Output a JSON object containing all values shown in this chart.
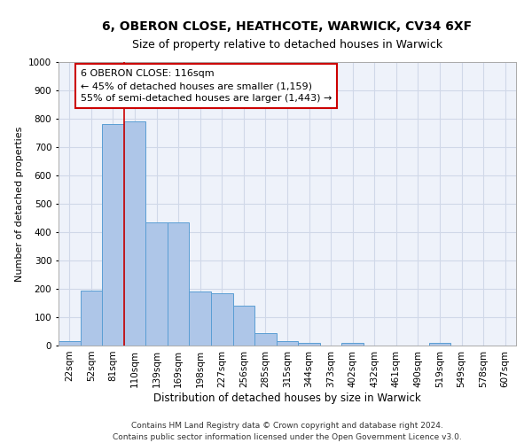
{
  "title1": "6, OBERON CLOSE, HEATHCOTE, WARWICK, CV34 6XF",
  "title2": "Size of property relative to detached houses in Warwick",
  "xlabel": "Distribution of detached houses by size in Warwick",
  "ylabel": "Number of detached properties",
  "categories": [
    "22sqm",
    "52sqm",
    "81sqm",
    "110sqm",
    "139sqm",
    "169sqm",
    "198sqm",
    "227sqm",
    "256sqm",
    "285sqm",
    "315sqm",
    "344sqm",
    "373sqm",
    "402sqm",
    "432sqm",
    "461sqm",
    "490sqm",
    "519sqm",
    "549sqm",
    "578sqm",
    "607sqm"
  ],
  "values": [
    15,
    195,
    780,
    790,
    435,
    435,
    190,
    185,
    140,
    45,
    15,
    10,
    0,
    10,
    0,
    0,
    0,
    10,
    0,
    0,
    0
  ],
  "bar_color": "#aec6e8",
  "bar_edge_color": "#5a9ed4",
  "vline_x_index": 3,
  "vline_color": "#cc0000",
  "annotation_text": "6 OBERON CLOSE: 116sqm\n← 45% of detached houses are smaller (1,159)\n55% of semi-detached houses are larger (1,443) →",
  "annotation_box_color": "#ffffff",
  "annotation_box_edge": "#cc0000",
  "ylim": [
    0,
    1000
  ],
  "yticks": [
    0,
    100,
    200,
    300,
    400,
    500,
    600,
    700,
    800,
    900,
    1000
  ],
  "grid_color": "#d0d8e8",
  "bg_color": "#eef2fa",
  "footer": "Contains HM Land Registry data © Crown copyright and database right 2024.\nContains public sector information licensed under the Open Government Licence v3.0.",
  "title1_fontsize": 10,
  "title2_fontsize": 9,
  "xlabel_fontsize": 8.5,
  "ylabel_fontsize": 8,
  "tick_fontsize": 7.5,
  "annot_fontsize": 8,
  "footer_fontsize": 6.5
}
